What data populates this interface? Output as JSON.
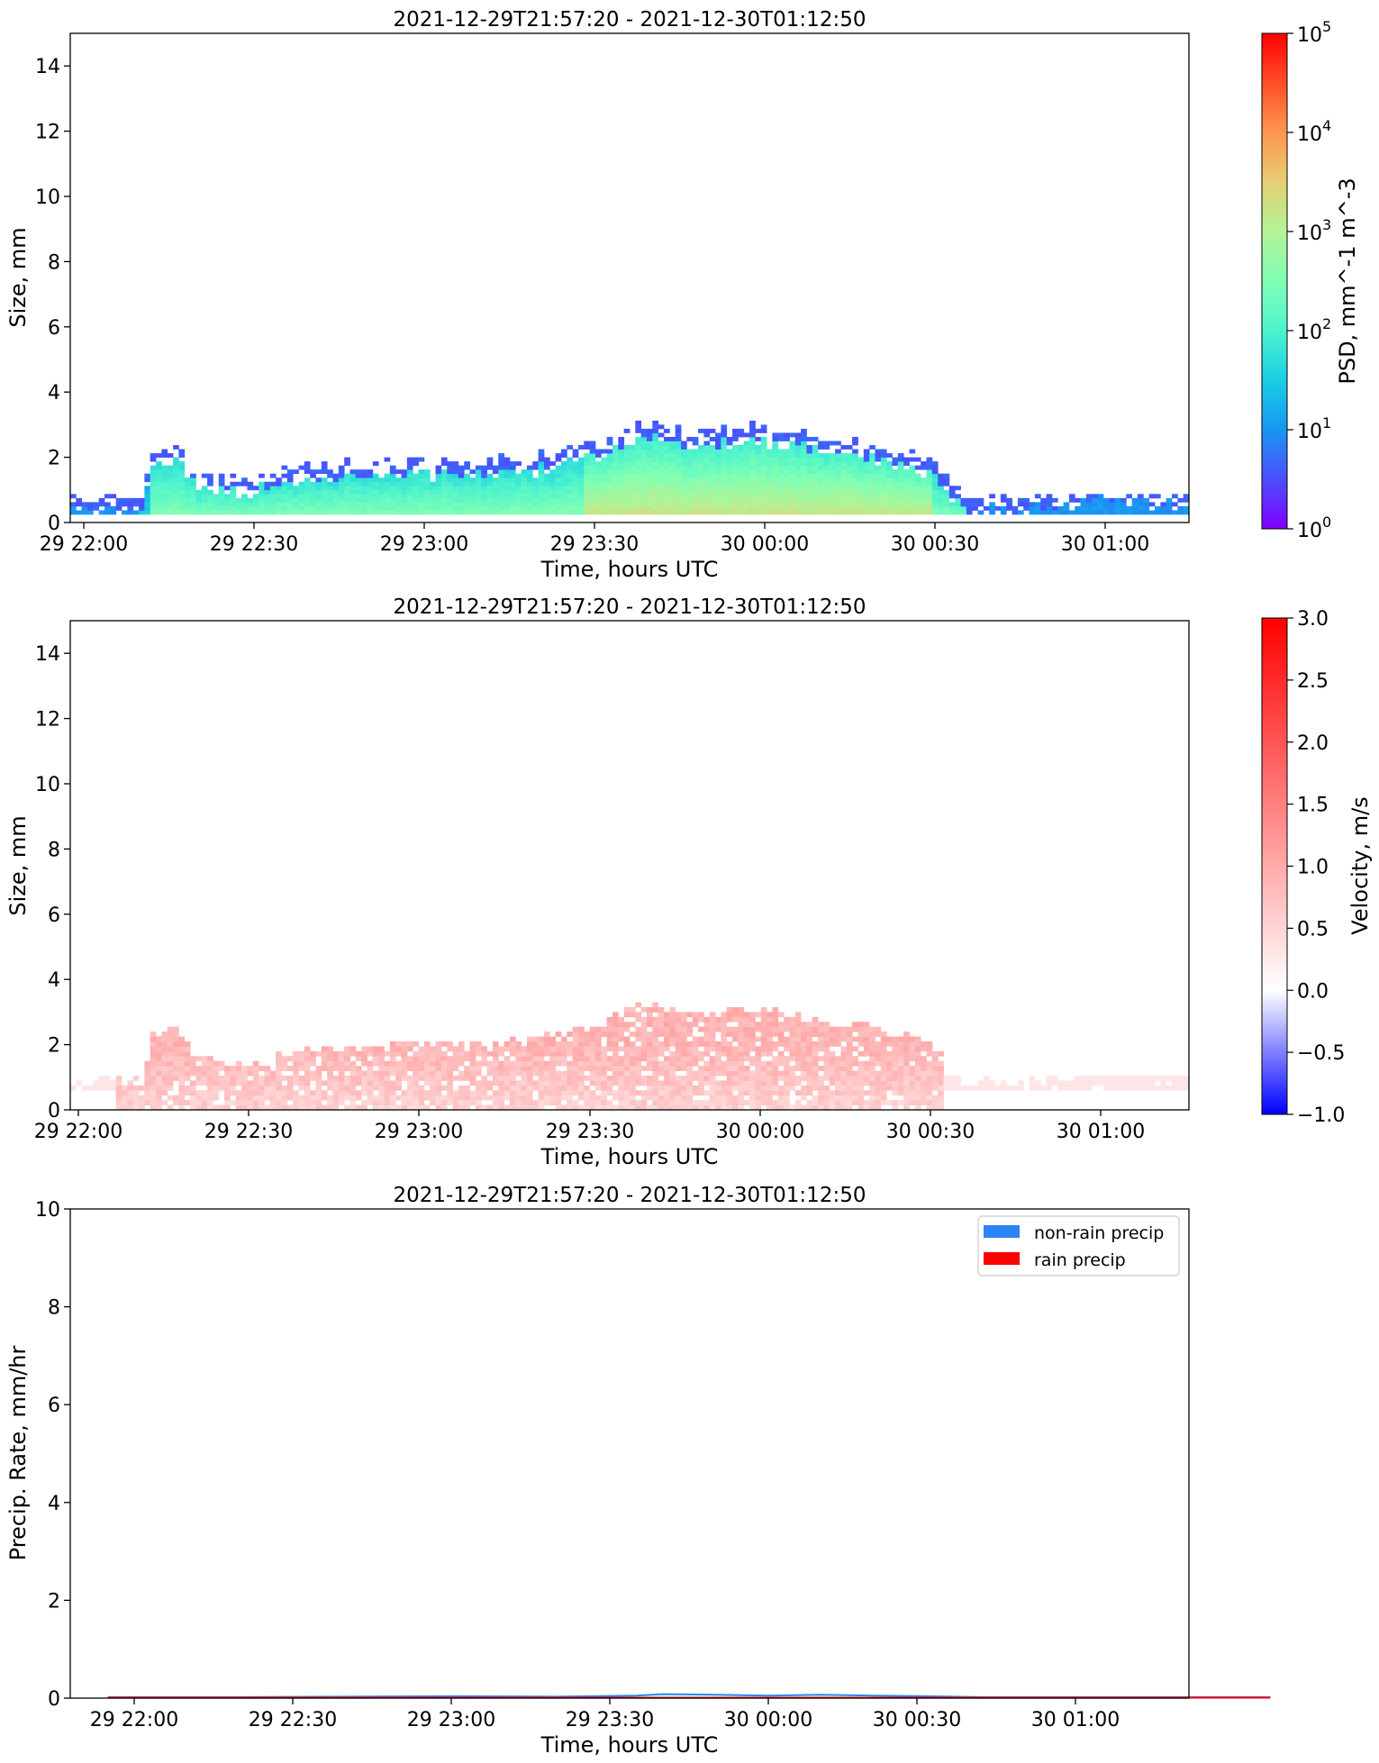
{
  "chart_data": [
    {
      "type": "heatmap",
      "title": "2021-12-29T21:57:20 - 2021-12-30T01:12:50",
      "xlabel": "Time, hours UTC",
      "ylabel": "Size, mm",
      "ylim": [
        0,
        15
      ],
      "yticks": [
        "0",
        "2",
        "4",
        "6",
        "8",
        "10",
        "12",
        "14"
      ],
      "xticks": [
        "29 22:00",
        "29 22:30",
        "29 23:00",
        "29 23:30",
        "30 00:00",
        "30 00:30",
        "30 01:00"
      ],
      "colorbar": {
        "label": "PSD, mm^-1 m^-3",
        "scale": "log",
        "range": [
          1,
          100000
        ],
        "ticks": [
          {
            "base": "10",
            "exp": "0"
          },
          {
            "base": "10",
            "exp": "1"
          },
          {
            "base": "10",
            "exp": "2"
          },
          {
            "base": "10",
            "exp": "3"
          },
          {
            "base": "10",
            "exp": "4"
          },
          {
            "base": "10",
            "exp": "5"
          }
        ],
        "colormap": "rainbow"
      },
      "data_extent": {
        "time_range": [
          "21:57:20",
          "01:12:50"
        ],
        "max_size_profile_mm": [
          [
            0,
            0.75
          ],
          [
            12,
            0.75
          ],
          [
            14,
            2.1
          ],
          [
            18,
            2.3
          ],
          [
            22,
            1.4
          ],
          [
            30,
            1.3
          ],
          [
            40,
            1.6
          ],
          [
            50,
            1.8
          ],
          [
            60,
            1.9
          ],
          [
            70,
            1.8
          ],
          [
            80,
            2.0
          ],
          [
            90,
            2.3
          ],
          [
            100,
            3.0
          ],
          [
            110,
            2.7
          ],
          [
            120,
            2.9
          ],
          [
            130,
            2.6
          ],
          [
            140,
            2.3
          ],
          [
            150,
            1.9
          ],
          [
            156,
            0.75
          ],
          [
            170,
            0.75
          ],
          [
            180,
            1.1
          ],
          [
            196,
            0.9
          ]
        ],
        "peak_value_region": "30 00:00, 0.3-1.0 mm, ~10^3"
      }
    },
    {
      "type": "heatmap",
      "title": "2021-12-29T21:57:20 - 2021-12-30T01:12:50",
      "xlabel": "Time, hours UTC",
      "ylabel": "Size, mm",
      "ylim": [
        0,
        15
      ],
      "yticks": [
        "0",
        "2",
        "4",
        "6",
        "8",
        "10",
        "12",
        "14"
      ],
      "xticks": [
        "29 22:00",
        "29 22:30",
        "29 23:00",
        "29 23:30",
        "30 00:00",
        "30 00:30",
        "30 01:00"
      ],
      "colorbar": {
        "label": "Velocity, m/s",
        "scale": "linear",
        "range": [
          -1.0,
          3.0
        ],
        "ticks": [
          "−1.0",
          "−0.5",
          "0.0",
          "0.5",
          "1.0",
          "1.5",
          "2.0",
          "2.5",
          "3.0"
        ],
        "colormap": "bwr"
      },
      "data_extent": {
        "typical_value_m_s": 0.8,
        "max_size_mm": 3.3
      }
    },
    {
      "type": "area",
      "title": "2021-12-29T21:57:20 - 2021-12-30T01:12:50",
      "xlabel": "Time, hours UTC",
      "ylabel": "Precip. Rate, mm/hr",
      "ylim": [
        0,
        10
      ],
      "yticks": [
        "0",
        "2",
        "4",
        "6",
        "8",
        "10"
      ],
      "xticks": [
        "29 22:00",
        "29 22:30",
        "29 23:00",
        "29 23:30",
        "30 00:00",
        "30 00:30",
        "30 01:00"
      ],
      "legend_position": "top-right",
      "series": [
        {
          "name": "non-rain precip",
          "color": "#2b85f5",
          "x_minutes_from_2200": [
            -5,
            0,
            20,
            40,
            60,
            80,
            95,
            100,
            110,
            120,
            130,
            140,
            150,
            160,
            180,
            200,
            215
          ],
          "values": [
            0.02,
            0.02,
            0.02,
            0.03,
            0.04,
            0.03,
            0.05,
            0.08,
            0.07,
            0.05,
            0.07,
            0.05,
            0.04,
            0.02,
            0.02,
            0.02,
            0.02
          ]
        },
        {
          "name": "rain precip",
          "color": "#ff0000",
          "x_minutes_from_2200": [
            -5,
            215
          ],
          "values": [
            0.01,
            0.01
          ]
        }
      ]
    }
  ]
}
